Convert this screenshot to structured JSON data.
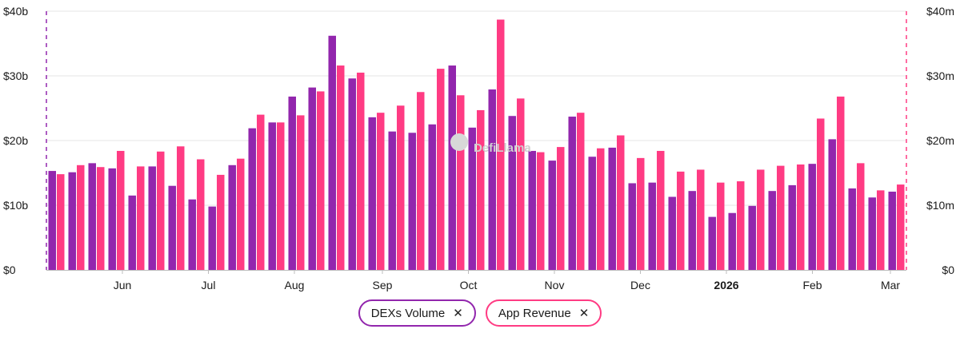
{
  "chart_data": {
    "type": "bar",
    "title": "",
    "colors": {
      "dexs": "#9226ad",
      "revenue": "#ff3b83",
      "grid": "#e6e6e6"
    },
    "left_axis": {
      "ylim": [
        0,
        40
      ],
      "ticks": [
        "$0",
        "$10b",
        "$20b",
        "$30b",
        "$40b"
      ]
    },
    "right_axis": {
      "ylim": [
        0,
        40
      ],
      "ticks": [
        "$0",
        "$10m",
        "$20m",
        "$30m",
        "$40m"
      ]
    },
    "x_labels": [
      {
        "label": "Jun",
        "index": 3.3,
        "bold": false
      },
      {
        "label": "Jul",
        "index": 7.6,
        "bold": false
      },
      {
        "label": "Aug",
        "index": 11.9,
        "bold": false
      },
      {
        "label": "Sep",
        "index": 16.3,
        "bold": false
      },
      {
        "label": "Oct",
        "index": 20.6,
        "bold": false
      },
      {
        "label": "Nov",
        "index": 24.9,
        "bold": false
      },
      {
        "label": "Dec",
        "index": 29.2,
        "bold": false
      },
      {
        "label": "2026",
        "index": 33.5,
        "bold": true
      },
      {
        "label": "Feb",
        "index": 37.8,
        "bold": false
      },
      {
        "label": "Mar",
        "index": 41.7,
        "bold": false
      }
    ],
    "series": [
      {
        "name": "DEXs Volume",
        "unit": "b",
        "axis": "left",
        "values": [
          15.3,
          15.1,
          16.5,
          15.7,
          11.5,
          16.0,
          13.0,
          10.9,
          9.8,
          16.2,
          21.9,
          22.8,
          26.8,
          28.2,
          36.2,
          29.6,
          23.6,
          21.4,
          21.2,
          22.5,
          31.6,
          22.0,
          27.9,
          23.8,
          18.4,
          16.9,
          23.7,
          17.5,
          18.9,
          13.4,
          13.5,
          11.3,
          12.2,
          8.2,
          8.8,
          9.9,
          12.2,
          13.1,
          16.4,
          20.2,
          12.6,
          11.2,
          12.1
        ]
      },
      {
        "name": "App Revenue",
        "unit": "m",
        "axis": "right",
        "values": [
          14.8,
          16.2,
          15.9,
          18.4,
          16.0,
          18.3,
          19.1,
          17.1,
          14.7,
          17.2,
          24.0,
          22.8,
          23.9,
          27.6,
          31.6,
          30.5,
          24.3,
          25.4,
          27.5,
          31.1,
          27.0,
          24.7,
          38.7,
          26.5,
          18.2,
          19.0,
          24.3,
          18.8,
          20.8,
          17.3,
          18.4,
          15.2,
          15.5,
          13.5,
          13.7,
          15.5,
          16.1,
          16.3,
          23.4,
          26.8,
          16.5,
          12.3,
          13.2
        ]
      }
    ]
  },
  "legend": [
    {
      "label": "DEXs Volume",
      "close": "✕",
      "color": "#9226ad"
    },
    {
      "label": "App Revenue",
      "close": "✕",
      "color": "#ff3b83"
    }
  ],
  "watermark": "DefiLlama"
}
